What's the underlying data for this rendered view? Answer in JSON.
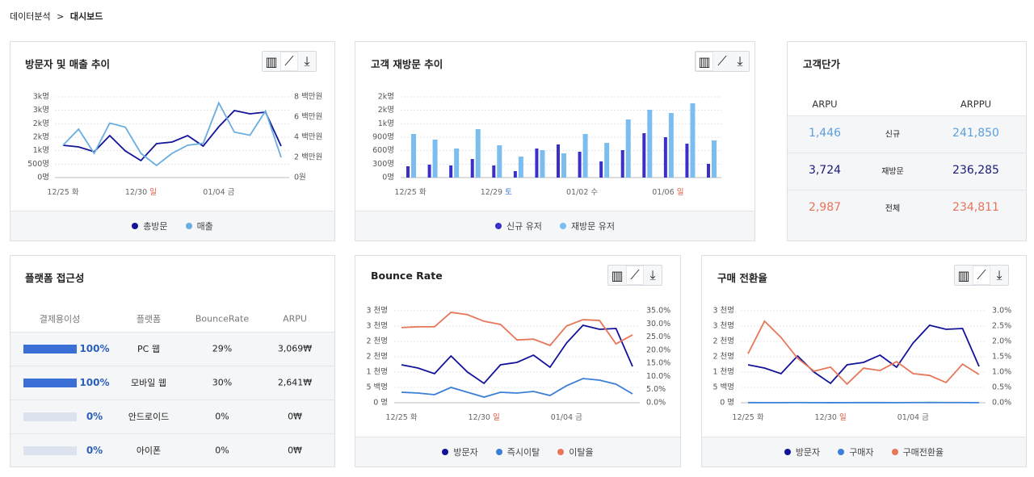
{
  "breadcrumb": {
    "parent": "데이터분석",
    "current": "대시보드"
  },
  "weekday_colors": {
    "토": "#3b6fd6",
    "일": "#e0533a"
  },
  "chart_data": [
    {
      "type": "line",
      "title": "방문자 및 매출 추이",
      "categories": [
        "12/25",
        null,
        null,
        null,
        null,
        "12/30",
        null,
        null,
        null,
        null,
        "01/04",
        null,
        null,
        null,
        null
      ],
      "weekdays": [
        "화",
        null,
        null,
        null,
        null,
        "일",
        null,
        null,
        null,
        null,
        "금",
        null,
        null,
        null,
        null
      ],
      "ylim": [
        0,
        3000
      ],
      "yticks": [
        {
          "value": 0,
          "label": "0명"
        },
        {
          "value": 500,
          "label": "500명"
        },
        {
          "value": 1000,
          "label": "1k명"
        },
        {
          "value": 1500,
          "label": "2k명"
        },
        {
          "value": 2000,
          "label": "2k명"
        },
        {
          "value": 2500,
          "label": "3k명"
        },
        {
          "value": 3000,
          "label": "3k명"
        }
      ],
      "y2lim": [
        0,
        8
      ],
      "y2ticks": [
        {
          "value": 0,
          "label": "0원"
        },
        {
          "value": 2,
          "label": "2 백만원"
        },
        {
          "value": 4,
          "label": "4 백만원"
        },
        {
          "value": 6,
          "label": "6 백만원"
        },
        {
          "value": 8,
          "label": "8 백만원"
        }
      ],
      "grid": true,
      "series": [
        {
          "name": "총방문",
          "color": "#14149a",
          "values": [
            1200,
            1140,
            960,
            1560,
            990,
            630,
            1260,
            1320,
            1560,
            1170,
            1890,
            2490,
            2370,
            2430,
            1170
          ]
        },
        {
          "name": "매출",
          "color": "#6aaee0",
          "axis": "y2",
          "values": [
            3.2,
            4.8,
            2.4,
            5.4,
            5.0,
            2.4,
            1.2,
            2.4,
            3.2,
            3.4,
            7.4,
            4.5,
            4.2,
            6.6,
            2.0
          ]
        }
      ]
    },
    {
      "type": "bar",
      "title": "고객 재방문 추이",
      "categories": [
        "12/25",
        null,
        null,
        null,
        "12/29",
        null,
        null,
        null,
        "01/02",
        null,
        null,
        null,
        "01/06",
        null,
        null
      ],
      "weekdays": [
        "화",
        null,
        null,
        null,
        "토",
        null,
        null,
        null,
        "수",
        null,
        null,
        null,
        "일",
        null,
        null
      ],
      "ylim": [
        0,
        1800
      ],
      "yticks": [
        {
          "value": 0,
          "label": "0명"
        },
        {
          "value": 300,
          "label": "300명"
        },
        {
          "value": 600,
          "label": "600명"
        },
        {
          "value": 900,
          "label": "900명"
        },
        {
          "value": 1200,
          "label": "1k명"
        },
        {
          "value": 1500,
          "label": "2k명"
        },
        {
          "value": 1800,
          "label": "2k명"
        }
      ],
      "grid": true,
      "series": [
        {
          "name": "신규 유저",
          "color": "#3a2fc8",
          "values": [
            252,
            288,
            270,
            414,
            270,
            144,
            648,
            738,
            576,
            360,
            612,
            990,
            900,
            756,
            306
          ]
        },
        {
          "name": "재방문 유저",
          "color": "#7cbdf0",
          "values": [
            972,
            846,
            648,
            1080,
            720,
            468,
            612,
            540,
            972,
            774,
            1296,
            1512,
            1440,
            1656,
            828
          ]
        }
      ]
    },
    {
      "type": "line",
      "title": "Bounce Rate",
      "categories": [
        "12/25",
        null,
        null,
        null,
        null,
        "12/30",
        null,
        null,
        null,
        null,
        "01/04",
        null,
        null,
        null,
        null
      ],
      "weekdays": [
        "화",
        null,
        null,
        null,
        null,
        "일",
        null,
        null,
        null,
        null,
        "금",
        null,
        null,
        null,
        null
      ],
      "ylim": [
        0,
        3000
      ],
      "yticks": [
        {
          "value": 0,
          "label": "0 명"
        },
        {
          "value": 500,
          "label": "5 백명"
        },
        {
          "value": 1000,
          "label": "1 천명"
        },
        {
          "value": 1500,
          "label": "2 천명"
        },
        {
          "value": 2000,
          "label": "2 천명"
        },
        {
          "value": 2500,
          "label": "3 천명"
        },
        {
          "value": 3000,
          "label": "3 천명"
        }
      ],
      "y2lim": [
        0,
        35
      ],
      "y2ticks": [
        {
          "value": 0,
          "label": "0.0%"
        },
        {
          "value": 5,
          "label": "5.0%"
        },
        {
          "value": 10,
          "label": "10.0%"
        },
        {
          "value": 15,
          "label": "15.0%"
        },
        {
          "value": 20,
          "label": "20.0%"
        },
        {
          "value": 25,
          "label": "25.0%"
        },
        {
          "value": 30,
          "label": "30.0%"
        },
        {
          "value": 35,
          "label": "35.0%"
        }
      ],
      "grid": true,
      "series": [
        {
          "name": "방문자",
          "color": "#13139a",
          "values": [
            1237,
            1132,
            947,
            1526,
            1000,
            632,
            1237,
            1316,
            1553,
            1158,
            1947,
            2526,
            2395,
            2421,
            1184
          ]
        },
        {
          "name": "즉시이탈",
          "color": "#3c7fd6",
          "values": [
            342,
            316,
            263,
            500,
            342,
            184,
            342,
            316,
            368,
            237,
            553,
            789,
            737,
            605,
            289
          ]
        },
        {
          "name": "이탈율",
          "color": "#e8775a",
          "axis": "y2",
          "values": [
            28.6,
            28.9,
            28.9,
            34.4,
            33.5,
            31.0,
            29.8,
            23.9,
            24.2,
            21.8,
            29.2,
            31.6,
            31.3,
            22.4,
            25.8
          ]
        }
      ]
    },
    {
      "type": "line",
      "title": "구매 전환율",
      "categories": [
        "12/25",
        null,
        null,
        null,
        null,
        "12/30",
        null,
        null,
        null,
        null,
        "01/04",
        null,
        null,
        null,
        null
      ],
      "weekdays": [
        "화",
        null,
        null,
        null,
        null,
        "일",
        null,
        null,
        null,
        null,
        "금",
        null,
        null,
        null,
        null
      ],
      "ylim": [
        0,
        3000
      ],
      "yticks": [
        {
          "value": 0,
          "label": "0 명"
        },
        {
          "value": 500,
          "label": "5 백명"
        },
        {
          "value": 1000,
          "label": "1 천명"
        },
        {
          "value": 1500,
          "label": "2 천명"
        },
        {
          "value": 2000,
          "label": "2 천명"
        },
        {
          "value": 2500,
          "label": "3 천명"
        },
        {
          "value": 3000,
          "label": "3 천명"
        }
      ],
      "y2lim": [
        0,
        3
      ],
      "y2ticks": [
        {
          "value": 0,
          "label": "0.0%"
        },
        {
          "value": 0.5,
          "label": "0.5%"
        },
        {
          "value": 1,
          "label": "1.0%"
        },
        {
          "value": 1.5,
          "label": "1.5%"
        },
        {
          "value": 2,
          "label": "2.0%"
        },
        {
          "value": 2.5,
          "label": "2.5%"
        },
        {
          "value": 3,
          "label": "3.0%"
        }
      ],
      "grid": true,
      "series": [
        {
          "name": "방문자",
          "color": "#13139a",
          "values": [
            1237,
            1132,
            947,
            1526,
            1000,
            632,
            1237,
            1316,
            1553,
            1158,
            1947,
            2526,
            2395,
            2421,
            1184
          ]
        },
        {
          "name": "구매자",
          "color": "#3c7fd6",
          "values": [
            5,
            4,
            3,
            6,
            4,
            2,
            4,
            5,
            5,
            3,
            6,
            8,
            7,
            7,
            4
          ]
        },
        {
          "name": "구매전환율",
          "color": "#e8775a",
          "axis": "y2",
          "values": [
            1.6,
            2.66,
            2.13,
            1.45,
            1.03,
            1.16,
            0.61,
            1.13,
            1.05,
            1.34,
            0.95,
            0.89,
            0.66,
            1.26,
            0.92
          ]
        }
      ]
    }
  ],
  "unit_price": {
    "title": "고객단가",
    "headers": [
      "ARPU",
      "ARPPU"
    ],
    "rows": [
      {
        "label": "신규",
        "arpu": "1,446",
        "arppu": "241,850",
        "color": "#5b9fdc"
      },
      {
        "label": "재방문",
        "arpu": "3,724",
        "arppu": "236,285",
        "color": "#1a1a7a"
      },
      {
        "label": "전체",
        "arpu": "2,987",
        "arppu": "234,811",
        "color": "#e8735a"
      }
    ]
  },
  "platform": {
    "title": "플랫폼 접근성",
    "headers": [
      "결제용이성",
      "플랫폼",
      "BounceRate",
      "ARPU"
    ],
    "bar_color": "#3b6fd6",
    "track_color": "#dde3ee",
    "rows": [
      {
        "ease": 100,
        "ease_label": "100%",
        "platform": "PC 웹",
        "bounce": "29%",
        "arpu": "3,069₩"
      },
      {
        "ease": 100,
        "ease_label": "100%",
        "platform": "모바일 웹",
        "bounce": "30%",
        "arpu": "2,641₩"
      },
      {
        "ease": 0,
        "ease_label": "0%",
        "platform": "안드로이드",
        "bounce": "0%",
        "arpu": "0₩"
      },
      {
        "ease": 0,
        "ease_label": "0%",
        "platform": "아이폰",
        "bounce": "0%",
        "arpu": "0₩"
      }
    ]
  }
}
